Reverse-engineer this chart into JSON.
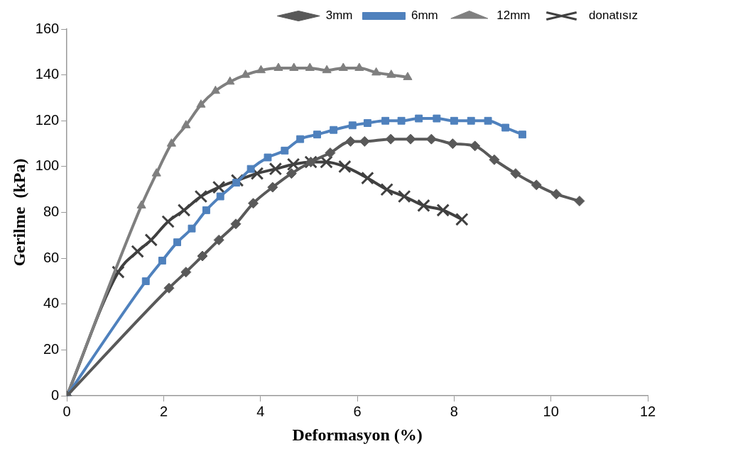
{
  "chart_data": {
    "type": "line",
    "xlabel": "Deformasyon (%)",
    "ylabel": "Gerilme  (kPa)",
    "xlim": [
      0,
      12
    ],
    "xticks": [
      0,
      2,
      4,
      6,
      8,
      10,
      12
    ],
    "ylim": [
      0,
      160
    ],
    "yticks": [
      0,
      20,
      40,
      60,
      80,
      100,
      120,
      140,
      160
    ],
    "grid": false,
    "legend": "top right",
    "line_style": "solid",
    "series": [
      {
        "name": "3mm",
        "color": "#595959",
        "marker": "diamond",
        "x": [
          0,
          2.11,
          2.46,
          2.8,
          3.14,
          3.49,
          3.85,
          4.25,
          4.64,
          5.04,
          5.44,
          5.86,
          6.15,
          6.69,
          7.1,
          7.53,
          7.97,
          8.43,
          8.83,
          9.27,
          9.7,
          10.11,
          10.59
        ],
        "values": [
          0,
          47,
          54,
          61,
          68,
          75,
          84,
          91,
          97,
          102,
          106,
          111,
          111,
          112,
          112,
          112,
          110,
          109,
          103,
          97,
          92,
          88,
          85
        ]
      },
      {
        "name": "6mm",
        "color": "#4f81bd",
        "marker": "square",
        "x": [
          0,
          1.63,
          1.97,
          2.28,
          2.58,
          2.88,
          3.17,
          3.5,
          3.8,
          4.15,
          4.5,
          4.82,
          5.17,
          5.51,
          5.9,
          6.21,
          6.58,
          6.91,
          7.27,
          7.64,
          8.0,
          8.35,
          8.7,
          9.06,
          9.41
        ],
        "values": [
          0,
          50,
          59,
          67,
          73,
          81,
          87,
          93,
          99,
          104,
          107,
          112,
          114,
          116,
          118,
          119,
          120,
          120,
          121,
          121,
          120,
          120,
          120,
          117,
          114
        ]
      },
      {
        "name": "12mm",
        "color": "#7f7f7f",
        "marker": "triangle",
        "x": [
          0,
          1.54,
          1.85,
          2.16,
          2.46,
          2.77,
          3.07,
          3.37,
          3.69,
          4.01,
          4.37,
          4.69,
          5.02,
          5.37,
          5.71,
          6.04,
          6.39,
          6.7,
          7.04
        ],
        "values": [
          0,
          83,
          97,
          110,
          118,
          127,
          133,
          137,
          140,
          142,
          143,
          143,
          143,
          142,
          143,
          143,
          141,
          140,
          139
        ]
      },
      {
        "name": "donatısız",
        "color": "#404040",
        "marker": "cross",
        "x": [
          0,
          1.06,
          1.46,
          1.74,
          2.09,
          2.42,
          2.77,
          3.14,
          3.52,
          3.93,
          4.31,
          4.68,
          5.04,
          5.36,
          5.74,
          6.21,
          6.61,
          6.97,
          7.37,
          7.77,
          8.16
        ],
        "values": [
          0,
          54,
          63,
          68,
          76,
          81,
          87,
          91,
          94,
          97,
          99,
          101,
          102,
          102,
          100,
          95,
          90,
          87,
          83,
          81,
          77
        ]
      }
    ]
  }
}
